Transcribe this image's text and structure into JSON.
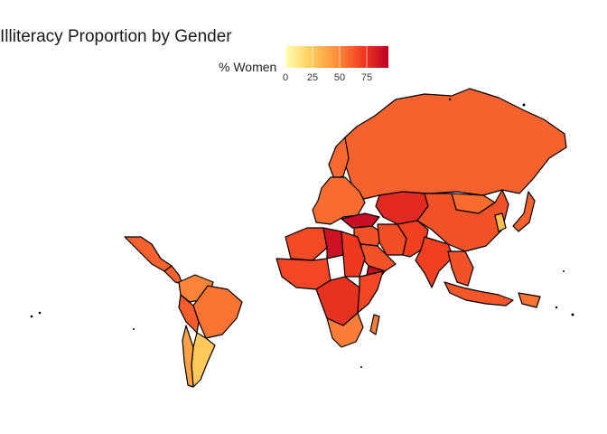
{
  "title": "Illiteracy Proportion by Gender",
  "legend": {
    "label": "% Women",
    "ticks": [
      "0",
      "25",
      "50",
      "75"
    ],
    "min": 0,
    "max": 95,
    "colors": [
      "#ffffb2",
      "#fecc5c",
      "#fd8d3c",
      "#f03b20",
      "#bd0026"
    ]
  },
  "regions": [
    {
      "id": "russia",
      "value": 60
    },
    {
      "id": "scandinavia",
      "value": 58
    },
    {
      "id": "europe",
      "value": 57
    },
    {
      "id": "kazakhstan",
      "value": 78
    },
    {
      "id": "mongolia",
      "value": 57
    },
    {
      "id": "china",
      "value": 65
    },
    {
      "id": "korea",
      "value": 30
    },
    {
      "id": "japan",
      "value": 60
    },
    {
      "id": "turkey",
      "value": 90
    },
    {
      "id": "middle-east",
      "value": 65
    },
    {
      "id": "iran",
      "value": 66
    },
    {
      "id": "afghanistan",
      "value": 70
    },
    {
      "id": "india",
      "value": 70
    },
    {
      "id": "arabia",
      "value": 65
    },
    {
      "id": "yemen",
      "value": 92
    },
    {
      "id": "southeast-asia",
      "value": 65
    },
    {
      "id": "indonesia",
      "value": 63
    },
    {
      "id": "png",
      "value": 55
    },
    {
      "id": "north-africa",
      "value": 67
    },
    {
      "id": "libya",
      "value": 88
    },
    {
      "id": "egypt",
      "value": 72
    },
    {
      "id": "west-africa",
      "value": 68
    },
    {
      "id": "central-africa",
      "value": 75
    },
    {
      "id": "east-africa",
      "value": 68
    },
    {
      "id": "southern-africa",
      "value": 52
    },
    {
      "id": "madagascar",
      "value": 52
    },
    {
      "id": "mexico",
      "value": 60
    },
    {
      "id": "central-america",
      "value": 60
    },
    {
      "id": "colombia-venezuela",
      "value": 50
    },
    {
      "id": "brazil",
      "value": 55
    },
    {
      "id": "peru-bolivia",
      "value": 62
    },
    {
      "id": "argentina",
      "value": 25
    },
    {
      "id": "chile",
      "value": 40
    }
  ]
}
